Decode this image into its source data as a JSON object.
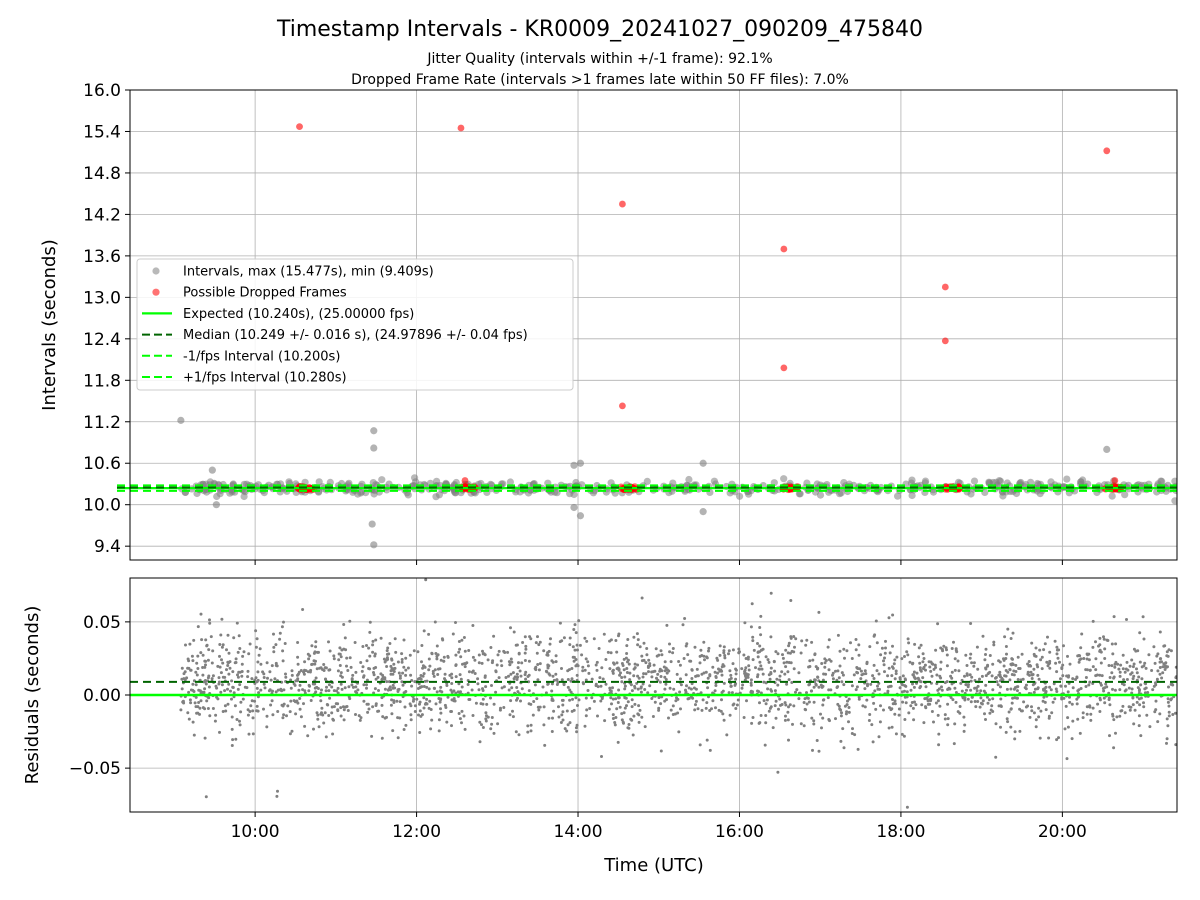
{
  "chart_data": {
    "type": "scatter",
    "title": "Timestamp Intervals - KR0009_20241027_090209_475840",
    "subtitles": [
      "Jitter Quality (intervals within +/-1 frame): 92.1%",
      "Dropped Frame Rate (intervals >1 frames late within 50 FF files): 7.0%"
    ],
    "xlabel": "Time (UTC)",
    "xlim_hours": [
      8.45,
      21.42
    ],
    "xticks": [
      {
        "hour": 10,
        "label": "10:00"
      },
      {
        "hour": 12,
        "label": "12:00"
      },
      {
        "hour": 14,
        "label": "14:00"
      },
      {
        "hour": 16,
        "label": "16:00"
      },
      {
        "hour": 18,
        "label": "18:00"
      },
      {
        "hour": 20,
        "label": "20:00"
      }
    ],
    "grid": true,
    "top_panel": {
      "ylabel": "Intervals (seconds)",
      "ylim": [
        9.2,
        16.0
      ],
      "yticks": [
        9.4,
        10.0,
        10.6,
        11.2,
        11.8,
        12.4,
        13.0,
        13.6,
        14.2,
        14.8,
        15.4,
        16.0
      ],
      "legend_position": "center-left",
      "expected": 10.24,
      "median": 10.249,
      "minus_interval": 10.2,
      "plus_interval": 10.28,
      "series": [
        {
          "name": "Intervals, max (15.477s), min (9.409s)",
          "color": "#808080"
        },
        {
          "name": "Possible Dropped Frames",
          "color": "#ff0000"
        },
        {
          "name": "Expected (10.240s), (25.00000 fps)",
          "color": "#00ff00"
        },
        {
          "name": "Median (10.249 +/- 0.016 s), (24.97896 +/- 0.04 fps)",
          "color": "#006400"
        },
        {
          "name": "-1/fps Interval (10.200s)",
          "color": "#00ff00"
        },
        {
          "name": "+1/fps Interval (10.280s)",
          "color": "#00ff00"
        }
      ],
      "gray_outliers": [
        {
          "x": 9.08,
          "y": 11.22
        },
        {
          "x": 9.47,
          "y": 10.5
        },
        {
          "x": 9.52,
          "y": 10.0
        },
        {
          "x": 11.47,
          "y": 11.07
        },
        {
          "x": 11.47,
          "y": 10.82
        },
        {
          "x": 11.45,
          "y": 9.72
        },
        {
          "x": 11.47,
          "y": 9.42
        },
        {
          "x": 13.95,
          "y": 10.57
        },
        {
          "x": 13.95,
          "y": 9.96
        },
        {
          "x": 14.03,
          "y": 9.84
        },
        {
          "x": 14.03,
          "y": 10.6
        },
        {
          "x": 15.55,
          "y": 10.6
        },
        {
          "x": 15.55,
          "y": 9.9
        },
        {
          "x": 20.55,
          "y": 10.8
        }
      ],
      "dropped_outliers": [
        {
          "x": 10.55,
          "y": 15.47
        },
        {
          "x": 12.55,
          "y": 15.45
        },
        {
          "x": 14.55,
          "y": 14.35
        },
        {
          "x": 14.55,
          "y": 11.43
        },
        {
          "x": 16.55,
          "y": 13.7
        },
        {
          "x": 16.55,
          "y": 11.98
        },
        {
          "x": 18.55,
          "y": 13.15
        },
        {
          "x": 18.55,
          "y": 12.37
        },
        {
          "x": 20.55,
          "y": 15.12
        },
        {
          "x": 12.6,
          "y": 10.35
        },
        {
          "x": 20.65,
          "y": 10.35
        }
      ],
      "dropped_clusters": [
        10.62,
        12.62,
        14.62,
        16.62,
        18.62,
        20.62
      ]
    },
    "bottom_panel": {
      "ylabel": "Residuals (seconds)",
      "ylim": [
        -0.08,
        0.08
      ],
      "yticks": [
        {
          "value": -0.05,
          "label": "−0.05"
        },
        {
          "value": 0.0,
          "label": "0.00"
        },
        {
          "value": 0.05,
          "label": "0.05"
        }
      ],
      "expected_residual": 0.0,
      "median_residual": 0.009,
      "residual_color": "#808080",
      "x_start_hours": 9.08,
      "x_end_hours": 21.42
    }
  }
}
